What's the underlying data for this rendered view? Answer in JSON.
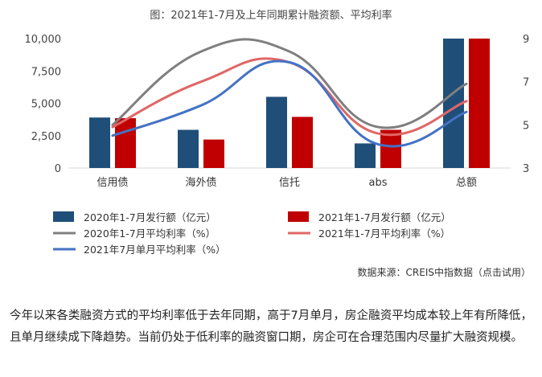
{
  "chart_data": {
    "type": "bar",
    "title": "图：2021年1-7月及上年同期累计融资额、平均利率",
    "categories": [
      "信用债",
      "海外债",
      "信托",
      "abs",
      "总额"
    ],
    "left_axis": {
      "ylim": [
        0,
        10000
      ],
      "ticks": [
        "0",
        "2,500",
        "5,000",
        "7,500",
        "10,000"
      ],
      "tick_values": [
        0,
        2500,
        5000,
        7500,
        10000
      ]
    },
    "right_axis": {
      "ylim": [
        3,
        9
      ],
      "ticks": [
        "3",
        "5",
        "7",
        "9"
      ],
      "tick_values": [
        3,
        5,
        7,
        9
      ]
    },
    "bar_series": [
      {
        "name": "2020年1-7月发行额（亿元）",
        "color": "#1f4e79",
        "values": [
          3900,
          2950,
          5500,
          1900,
          10000
        ]
      },
      {
        "name": "2021年1-7月发行额（亿元）",
        "color": "#c00000",
        "values": [
          3850,
          2200,
          3950,
          2950,
          10000
        ]
      }
    ],
    "line_series": [
      {
        "name": "2020年1-7月平均利率（%）",
        "color": "#7f7f7f",
        "values": [
          5.0,
          8.4,
          8.4,
          4.9,
          6.9
        ]
      },
      {
        "name": "2021年1-7月平均利率（%）",
        "color": "#e06666",
        "values": [
          4.9,
          7.0,
          7.9,
          4.6,
          6.1
        ]
      },
      {
        "name": "2021年7月单月平均利率（%）",
        "color": "#4472c4",
        "values": [
          4.5,
          5.9,
          7.9,
          4.1,
          5.6
        ]
      }
    ]
  },
  "source": "数据来源：CREIS中指数据（点击试用）",
  "paragraph": "今年以来各类融资方式的平均利率低于去年同期，高于7月单月，房企融资平均成本较上年有所降低，且单月继续成下降趋势。当前仍处于低利率的融资窗口期，房企可在合理范围内尽量扩大融资规模。"
}
